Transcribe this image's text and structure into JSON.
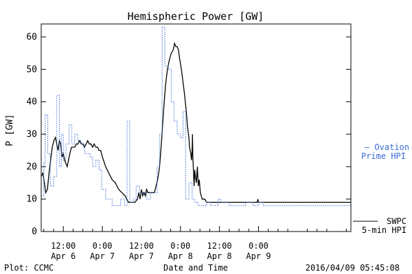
{
  "chart_data": {
    "type": "line",
    "title": "Hemispheric Power [GW]",
    "ylabel": "P [GW]",
    "xlabel": "Date and Time",
    "ylim": [
      0,
      64
    ],
    "yticks": [
      0,
      10,
      20,
      30,
      40,
      50,
      60
    ],
    "x_unit": "hours since 2016-04-05 00:00",
    "xlim": [
      5.2,
      100.4
    ],
    "xticks": [
      {
        "x": 12,
        "line1": "12:00",
        "line2": "Apr 6"
      },
      {
        "x": 24,
        "line1": "0:00",
        "line2": "Apr 7"
      },
      {
        "x": 36,
        "line1": "12:00",
        "line2": "Apr 7"
      },
      {
        "x": 48,
        "line1": "0:00",
        "line2": "Apr 8"
      },
      {
        "x": 60,
        "line1": "12:00",
        "line2": "Apr 8"
      },
      {
        "x": 72,
        "line1": "0:00",
        "line2": "Apr 9"
      }
    ],
    "grid": false,
    "series": [
      {
        "name_lines": [
          "SWPC",
          "5-min HPI"
        ],
        "color": "#000000",
        "style": "solid",
        "points": [
          [
            5.2,
            17
          ],
          [
            5.7,
            18
          ],
          [
            6.2,
            15
          ],
          [
            6.6,
            12
          ],
          [
            7.1,
            13
          ],
          [
            7.6,
            18
          ],
          [
            8.1,
            22
          ],
          [
            8.6,
            26
          ],
          [
            9.1,
            28
          ],
          [
            9.6,
            29
          ],
          [
            10.0,
            27
          ],
          [
            10.4,
            25
          ],
          [
            10.8,
            28
          ],
          [
            11.2,
            27
          ],
          [
            11.6,
            23
          ],
          [
            12.0,
            24
          ],
          [
            12.4,
            22
          ],
          [
            12.8,
            21
          ],
          [
            13.2,
            20
          ],
          [
            13.6,
            22
          ],
          [
            14.0,
            24
          ],
          [
            14.5,
            26
          ],
          [
            15.0,
            26
          ],
          [
            15.5,
            26
          ],
          [
            16.0,
            27
          ],
          [
            16.5,
            27
          ],
          [
            17.0,
            28
          ],
          [
            17.5,
            27
          ],
          [
            18.0,
            27
          ],
          [
            18.5,
            26
          ],
          [
            19.0,
            27
          ],
          [
            19.5,
            28
          ],
          [
            20.0,
            27
          ],
          [
            20.5,
            27
          ],
          [
            21.0,
            26
          ],
          [
            21.5,
            27
          ],
          [
            22.0,
            26
          ],
          [
            22.5,
            26
          ],
          [
            23.0,
            25
          ],
          [
            23.5,
            25
          ],
          [
            24.0,
            23
          ],
          [
            25.0,
            20
          ],
          [
            26.0,
            18
          ],
          [
            27.0,
            16
          ],
          [
            28.0,
            15
          ],
          [
            29.0,
            13
          ],
          [
            30.0,
            12
          ],
          [
            31.0,
            11
          ],
          [
            32.0,
            9
          ],
          [
            33.0,
            9
          ],
          [
            34.0,
            9
          ],
          [
            34.8,
            10
          ],
          [
            35.2,
            12
          ],
          [
            35.6,
            10
          ],
          [
            36.0,
            13
          ],
          [
            36.4,
            11
          ],
          [
            36.8,
            12
          ],
          [
            37.2,
            11
          ],
          [
            37.6,
            13
          ],
          [
            38.0,
            12
          ],
          [
            38.5,
            12
          ],
          [
            39.0,
            12
          ],
          [
            40.0,
            12
          ],
          [
            40.5,
            14
          ],
          [
            41.0,
            16
          ],
          [
            41.6,
            20
          ],
          [
            42.2,
            28
          ],
          [
            42.8,
            37
          ],
          [
            43.4,
            45
          ],
          [
            44.0,
            50
          ],
          [
            44.6,
            53
          ],
          [
            45.2,
            55
          ],
          [
            45.8,
            56
          ],
          [
            46.2,
            58
          ],
          [
            46.6,
            57
          ],
          [
            47.0,
            57
          ],
          [
            47.4,
            56
          ],
          [
            47.8,
            53
          ],
          [
            48.3,
            50
          ],
          [
            48.8,
            46
          ],
          [
            49.3,
            42
          ],
          [
            49.8,
            37
          ],
          [
            50.2,
            32
          ],
          [
            50.6,
            29
          ],
          [
            50.8,
            26
          ],
          [
            51.0,
            25
          ],
          [
            51.2,
            24
          ],
          [
            51.4,
            22
          ],
          [
            51.6,
            25
          ],
          [
            51.7,
            30
          ],
          [
            51.8,
            23
          ],
          [
            52.0,
            19
          ],
          [
            52.1,
            16
          ],
          [
            52.2,
            14
          ],
          [
            52.4,
            19
          ],
          [
            52.6,
            17
          ],
          [
            52.9,
            15
          ],
          [
            53.2,
            20
          ],
          [
            53.5,
            14
          ],
          [
            53.8,
            16
          ],
          [
            54.1,
            12
          ],
          [
            54.4,
            11
          ],
          [
            54.7,
            10
          ],
          [
            55.0,
            10
          ],
          [
            55.5,
            10
          ],
          [
            56.0,
            9
          ],
          [
            60.0,
            9
          ],
          [
            64.0,
            9
          ],
          [
            68.0,
            9
          ],
          [
            71.0,
            9
          ],
          [
            71.6,
            9
          ],
          [
            71.8,
            10
          ],
          [
            72.0,
            9
          ],
          [
            80.0,
            9
          ],
          [
            90.0,
            9
          ],
          [
            100.4,
            9
          ]
        ]
      },
      {
        "name_lines": [
          "– Ovation",
          "Prime HPI"
        ],
        "color": "#3a6ad6",
        "style": "dotted",
        "points": [
          [
            5.2,
            11
          ],
          [
            6.0,
            11
          ],
          [
            6.0,
            21
          ],
          [
            6.4,
            21
          ],
          [
            6.4,
            36
          ],
          [
            7.2,
            36
          ],
          [
            7.2,
            24
          ],
          [
            8.0,
            24
          ],
          [
            8.0,
            14
          ],
          [
            9.0,
            14
          ],
          [
            9.0,
            17
          ],
          [
            10.0,
            17
          ],
          [
            10.0,
            42
          ],
          [
            10.8,
            42
          ],
          [
            10.8,
            20
          ],
          [
            11.4,
            20
          ],
          [
            11.4,
            30
          ],
          [
            12.0,
            30
          ],
          [
            12.0,
            22
          ],
          [
            12.8,
            22
          ],
          [
            12.8,
            27
          ],
          [
            13.8,
            27
          ],
          [
            13.8,
            33
          ],
          [
            14.6,
            33
          ],
          [
            14.6,
            27
          ],
          [
            15.5,
            27
          ],
          [
            15.5,
            30
          ],
          [
            16.4,
            30
          ],
          [
            16.4,
            28
          ],
          [
            17.6,
            28
          ],
          [
            17.6,
            27
          ],
          [
            18.6,
            27
          ],
          [
            18.6,
            24
          ],
          [
            20.2,
            24
          ],
          [
            20.2,
            23
          ],
          [
            21.0,
            23
          ],
          [
            21.0,
            20
          ],
          [
            22.0,
            20
          ],
          [
            22.0,
            22
          ],
          [
            23.0,
            22
          ],
          [
            23.0,
            19
          ],
          [
            23.8,
            19
          ],
          [
            23.8,
            13
          ],
          [
            25.0,
            13
          ],
          [
            25.0,
            10
          ],
          [
            27.0,
            10
          ],
          [
            27.0,
            8
          ],
          [
            29.6,
            8
          ],
          [
            29.6,
            10
          ],
          [
            30.8,
            10
          ],
          [
            30.8,
            8
          ],
          [
            31.6,
            8
          ],
          [
            31.6,
            34
          ],
          [
            32.4,
            34
          ],
          [
            32.4,
            9
          ],
          [
            33.6,
            9
          ],
          [
            33.6,
            10
          ],
          [
            34.4,
            10
          ],
          [
            34.4,
            14
          ],
          [
            35.4,
            14
          ],
          [
            35.4,
            12
          ],
          [
            37.6,
            12
          ],
          [
            37.6,
            10
          ],
          [
            38.8,
            10
          ],
          [
            38.8,
            12
          ],
          [
            40.8,
            12
          ],
          [
            40.8,
            20
          ],
          [
            41.6,
            20
          ],
          [
            41.6,
            30
          ],
          [
            42.4,
            30
          ],
          [
            42.4,
            63
          ],
          [
            43.2,
            63
          ],
          [
            43.2,
            51
          ],
          [
            44.4,
            51
          ],
          [
            44.4,
            50
          ],
          [
            45.2,
            50
          ],
          [
            45.2,
            40
          ],
          [
            46.0,
            40
          ],
          [
            46.0,
            34
          ],
          [
            47.0,
            34
          ],
          [
            47.0,
            30
          ],
          [
            48.0,
            30
          ],
          [
            48.0,
            29
          ],
          [
            48.8,
            29
          ],
          [
            48.8,
            37
          ],
          [
            49.6,
            37
          ],
          [
            49.6,
            10
          ],
          [
            50.6,
            10
          ],
          [
            50.6,
            15
          ],
          [
            51.6,
            15
          ],
          [
            51.6,
            10
          ],
          [
            52.4,
            10
          ],
          [
            52.4,
            9
          ],
          [
            53.4,
            9
          ],
          [
            53.4,
            8
          ],
          [
            56.0,
            8
          ],
          [
            56.0,
            9
          ],
          [
            57.2,
            9
          ],
          [
            57.2,
            8
          ],
          [
            59.6,
            8
          ],
          [
            59.6,
            10
          ],
          [
            60.4,
            10
          ],
          [
            60.4,
            9
          ],
          [
            63.0,
            9
          ],
          [
            63.0,
            8
          ],
          [
            68.0,
            8
          ],
          [
            68.0,
            9
          ],
          [
            70.2,
            9
          ],
          [
            70.2,
            8
          ],
          [
            72.0,
            8
          ],
          [
            72.0,
            9
          ],
          [
            73.4,
            9
          ],
          [
            73.4,
            8
          ],
          [
            80.0,
            8
          ],
          [
            90.0,
            8
          ],
          [
            100.4,
            8
          ]
        ]
      }
    ]
  },
  "footer": {
    "left": "Plot: CCMC",
    "right": "2016/04/09 05:45:08"
  }
}
